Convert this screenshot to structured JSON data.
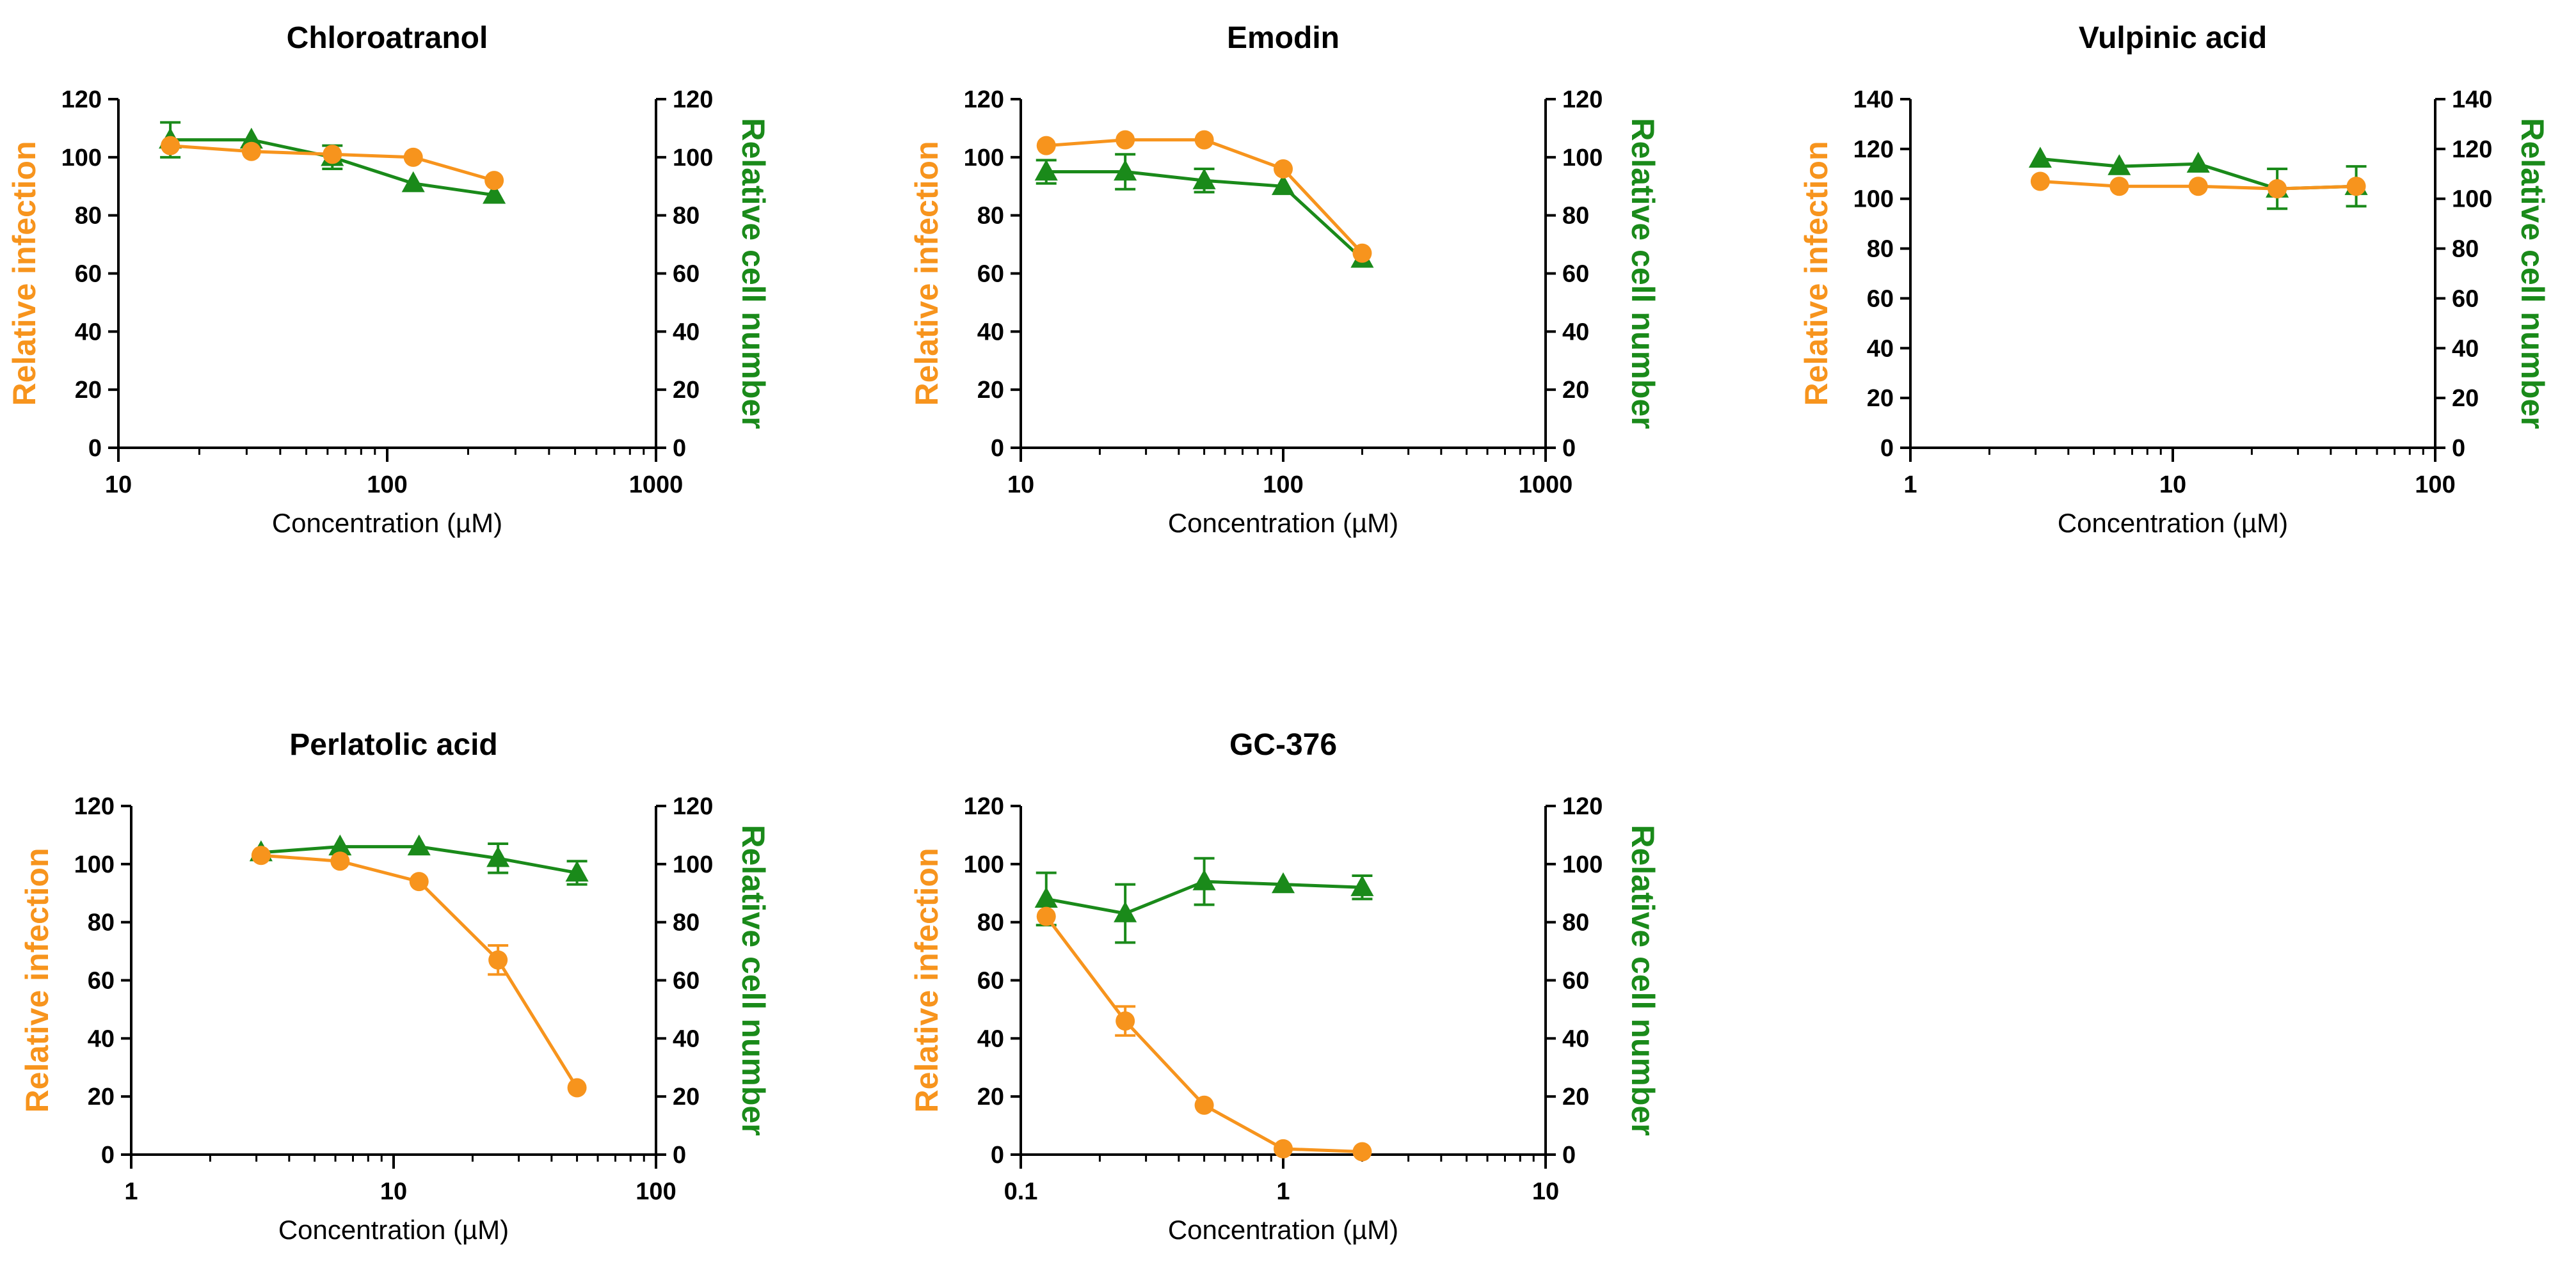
{
  "colors": {
    "infection": "#F7941D",
    "cell_number": "#1A8A1A",
    "axis": "#000000"
  },
  "chart_data": [
    {
      "type": "line",
      "title": "Chloroatranol",
      "xlabel": "Concentration (µM)",
      "ylabel_left": "Relative infection",
      "ylabel_right": "Relative cell number",
      "xscale": "log",
      "xlim": [
        10,
        1000
      ],
      "xticks": [
        10,
        100,
        1000
      ],
      "xtick_labels": [
        "10",
        "100",
        "1000"
      ],
      "ylim": [
        0,
        120
      ],
      "yticks": [
        0,
        20,
        40,
        60,
        80,
        100,
        120
      ],
      "ytick_labels": [
        "0",
        "20",
        "40",
        "60",
        "80",
        "100",
        "120"
      ],
      "series": [
        {
          "name": "Relative infection",
          "axis": "left",
          "marker": "circle",
          "x": [
            15.6,
            31.25,
            62.5,
            125,
            250
          ],
          "y": [
            104,
            102,
            101,
            100,
            92
          ],
          "err": [
            0,
            0,
            0,
            0,
            0
          ]
        },
        {
          "name": "Relative cell number",
          "axis": "right",
          "marker": "triangle",
          "x": [
            15.6,
            31.25,
            62.5,
            125,
            250
          ],
          "y": [
            106,
            106,
            100,
            91,
            87
          ],
          "err": [
            6,
            0,
            4,
            0,
            0
          ]
        }
      ]
    },
    {
      "type": "line",
      "title": "Emodin",
      "xlabel": "Concentration (µM)",
      "ylabel_left": "Relative infection",
      "ylabel_right": "Relative cell number",
      "xscale": "log",
      "xlim": [
        10,
        1000
      ],
      "xticks": [
        10,
        100,
        1000
      ],
      "xtick_labels": [
        "10",
        "100",
        "1000"
      ],
      "ylim": [
        0,
        120
      ],
      "yticks": [
        0,
        20,
        40,
        60,
        80,
        100,
        120
      ],
      "ytick_labels": [
        "0",
        "20",
        "40",
        "60",
        "80",
        "100",
        "120"
      ],
      "series": [
        {
          "name": "Relative infection",
          "axis": "left",
          "marker": "circle",
          "x": [
            12.5,
            25,
            50,
            100,
            200
          ],
          "y": [
            104,
            106,
            106,
            96,
            67
          ],
          "err": [
            0,
            0,
            0,
            0,
            0
          ]
        },
        {
          "name": "Relative cell number",
          "axis": "right",
          "marker": "triangle",
          "x": [
            12.5,
            25,
            50,
            100,
            200
          ],
          "y": [
            95,
            95,
            92,
            90,
            65
          ],
          "err": [
            4,
            6,
            4,
            0,
            0
          ]
        }
      ]
    },
    {
      "type": "line",
      "title": "Vulpinic acid",
      "xlabel": "Concentration (µM)",
      "ylabel_left": "Relative infection",
      "ylabel_right": "Relative cell number",
      "xscale": "log",
      "xlim": [
        1,
        100
      ],
      "xticks": [
        1,
        10,
        100
      ],
      "xtick_labels": [
        "1",
        "10",
        "100"
      ],
      "ylim": [
        0,
        140
      ],
      "yticks": [
        0,
        20,
        40,
        60,
        80,
        100,
        120,
        140
      ],
      "ytick_labels": [
        "0",
        "20",
        "40",
        "60",
        "80",
        "100",
        "120",
        "140"
      ],
      "series": [
        {
          "name": "Relative infection",
          "axis": "left",
          "marker": "circle",
          "x": [
            3.125,
            6.25,
            12.5,
            25,
            50
          ],
          "y": [
            107,
            105,
            105,
            104,
            105
          ],
          "err": [
            0,
            0,
            0,
            0,
            0
          ]
        },
        {
          "name": "Relative cell number",
          "axis": "right",
          "marker": "triangle",
          "x": [
            3.125,
            6.25,
            12.5,
            25,
            50
          ],
          "y": [
            116,
            113,
            114,
            104,
            105
          ],
          "err": [
            0,
            0,
            0,
            8,
            8
          ]
        }
      ]
    },
    {
      "type": "line",
      "title": "Perlatolic acid",
      "xlabel": "Concentration (µM)",
      "ylabel_left": "Relative infection",
      "ylabel_right": "Relative cell number",
      "xscale": "log",
      "xlim": [
        1,
        100
      ],
      "xticks": [
        1,
        10,
        100
      ],
      "xtick_labels": [
        "1",
        "10",
        "100"
      ],
      "ylim": [
        0,
        120
      ],
      "yticks": [
        0,
        20,
        40,
        60,
        80,
        100,
        120
      ],
      "ytick_labels": [
        "0",
        "20",
        "40",
        "60",
        "80",
        "100",
        "120"
      ],
      "series": [
        {
          "name": "Relative infection",
          "axis": "left",
          "marker": "circle",
          "x": [
            3.125,
            6.25,
            12.5,
            25,
            50
          ],
          "y": [
            103,
            101,
            94,
            67,
            23
          ],
          "err": [
            0,
            0,
            0,
            5,
            0
          ]
        },
        {
          "name": "Relative cell number",
          "axis": "right",
          "marker": "triangle",
          "x": [
            3.125,
            6.25,
            12.5,
            25,
            50
          ],
          "y": [
            104,
            106,
            106,
            102,
            97
          ],
          "err": [
            0,
            0,
            0,
            5,
            4
          ]
        }
      ]
    },
    {
      "type": "line",
      "title": "GC-376",
      "xlabel": "Concentration (µM)",
      "ylabel_left": "Relative infection",
      "ylabel_right": "Relative cell number",
      "xscale": "log",
      "xlim": [
        0.1,
        10
      ],
      "xticks": [
        0.1,
        1,
        10
      ],
      "xtick_labels": [
        "0.1",
        "1",
        "10"
      ],
      "ylim": [
        0,
        120
      ],
      "yticks": [
        0,
        20,
        40,
        60,
        80,
        100,
        120
      ],
      "ytick_labels": [
        "0",
        "20",
        "40",
        "60",
        "80",
        "100",
        "120"
      ],
      "series": [
        {
          "name": "Relative infection",
          "axis": "left",
          "marker": "circle",
          "x": [
            0.125,
            0.25,
            0.5,
            1,
            2
          ],
          "y": [
            82,
            46,
            17,
            2,
            1
          ],
          "err": [
            0,
            5,
            0,
            0,
            0
          ]
        },
        {
          "name": "Relative cell number",
          "axis": "right",
          "marker": "triangle",
          "x": [
            0.125,
            0.25,
            0.5,
            1,
            2
          ],
          "y": [
            88,
            83,
            94,
            93,
            92
          ],
          "err": [
            9,
            10,
            8,
            0,
            4
          ]
        }
      ]
    }
  ]
}
